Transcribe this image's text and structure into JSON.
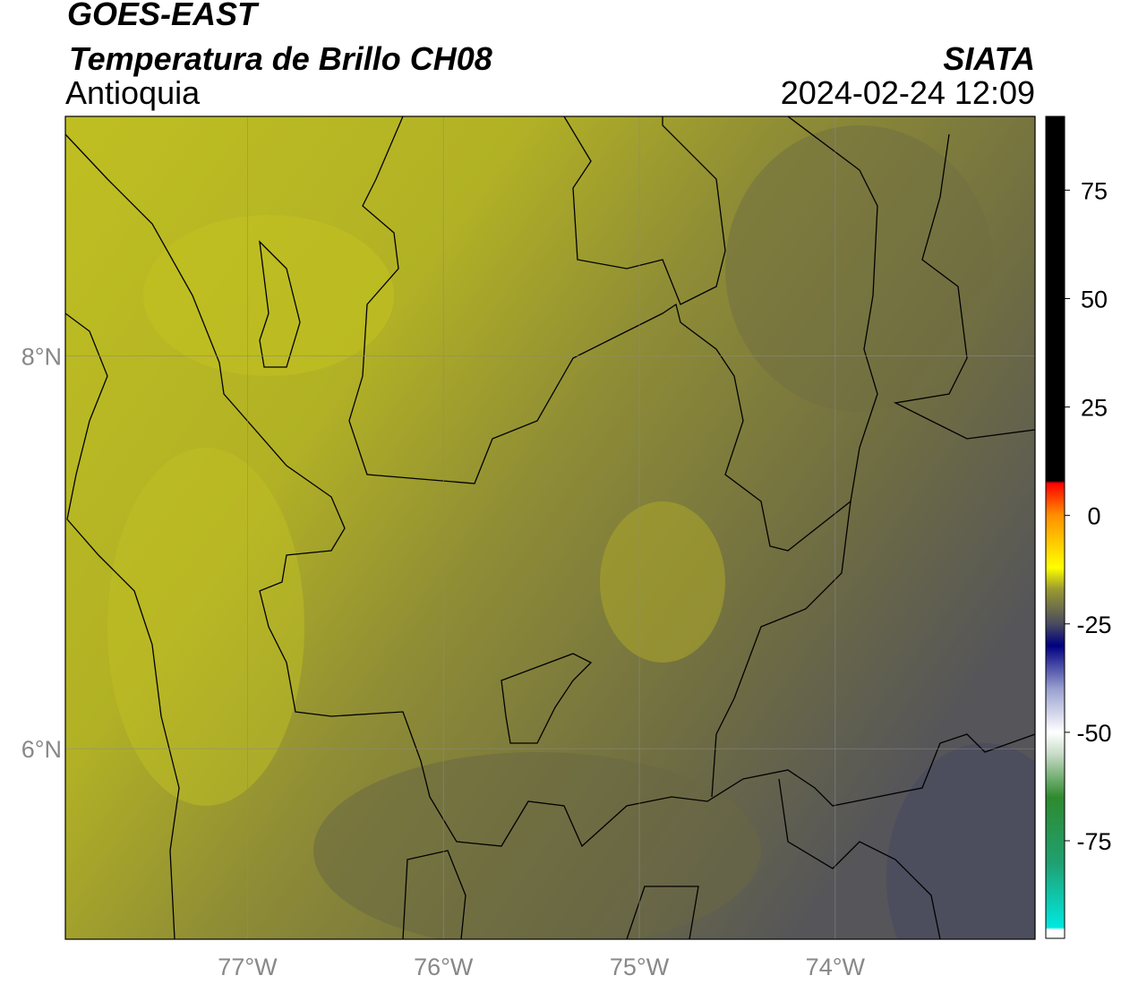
{
  "chart_data": {
    "type": "map",
    "title": "GOES-EAST",
    "subtitle": "Temperatura de Brillo CH08",
    "region": "Antioquia",
    "source": "SIATA",
    "datetime": "2024-02-24 12:09",
    "xlim": [
      -77.93,
      -72.98
    ],
    "ylim": [
      5.03,
      9.22
    ],
    "xticks": [
      {
        "value": -77,
        "label": "77°W"
      },
      {
        "value": -76,
        "label": "76°W"
      },
      {
        "value": -75,
        "label": "75°W"
      },
      {
        "value": -74,
        "label": "74°W"
      }
    ],
    "yticks": [
      {
        "value": 8,
        "label": "8°N"
      },
      {
        "value": 6,
        "label": "6°N"
      }
    ],
    "grid": true,
    "colorbar": {
      "lim": [
        -97.5,
        92
      ],
      "ticks": [
        75,
        50,
        25,
        0,
        -25,
        -50,
        -75
      ],
      "stops": [
        {
          "value": -97.5,
          "color": "#ffffff"
        },
        {
          "value": -95.5,
          "color": "#ffffff"
        },
        {
          "value": -95,
          "color": "#00e8e0"
        },
        {
          "value": -80,
          "color": "#20a070"
        },
        {
          "value": -65,
          "color": "#2e8a2e"
        },
        {
          "value": -55,
          "color": "#c8dcc8"
        },
        {
          "value": -50,
          "color": "#ffffff"
        },
        {
          "value": -40,
          "color": "#9aa0d0"
        },
        {
          "value": -30,
          "color": "#000080"
        },
        {
          "value": -25,
          "color": "#4a4a60"
        },
        {
          "value": -17,
          "color": "#9a9a30"
        },
        {
          "value": -12,
          "color": "#ffff00"
        },
        {
          "value": 0,
          "color": "#ff9000"
        },
        {
          "value": 7.4,
          "color": "#ff0000"
        },
        {
          "value": 8,
          "color": "#000000"
        },
        {
          "value": 92,
          "color": "#000000"
        }
      ]
    }
  }
}
